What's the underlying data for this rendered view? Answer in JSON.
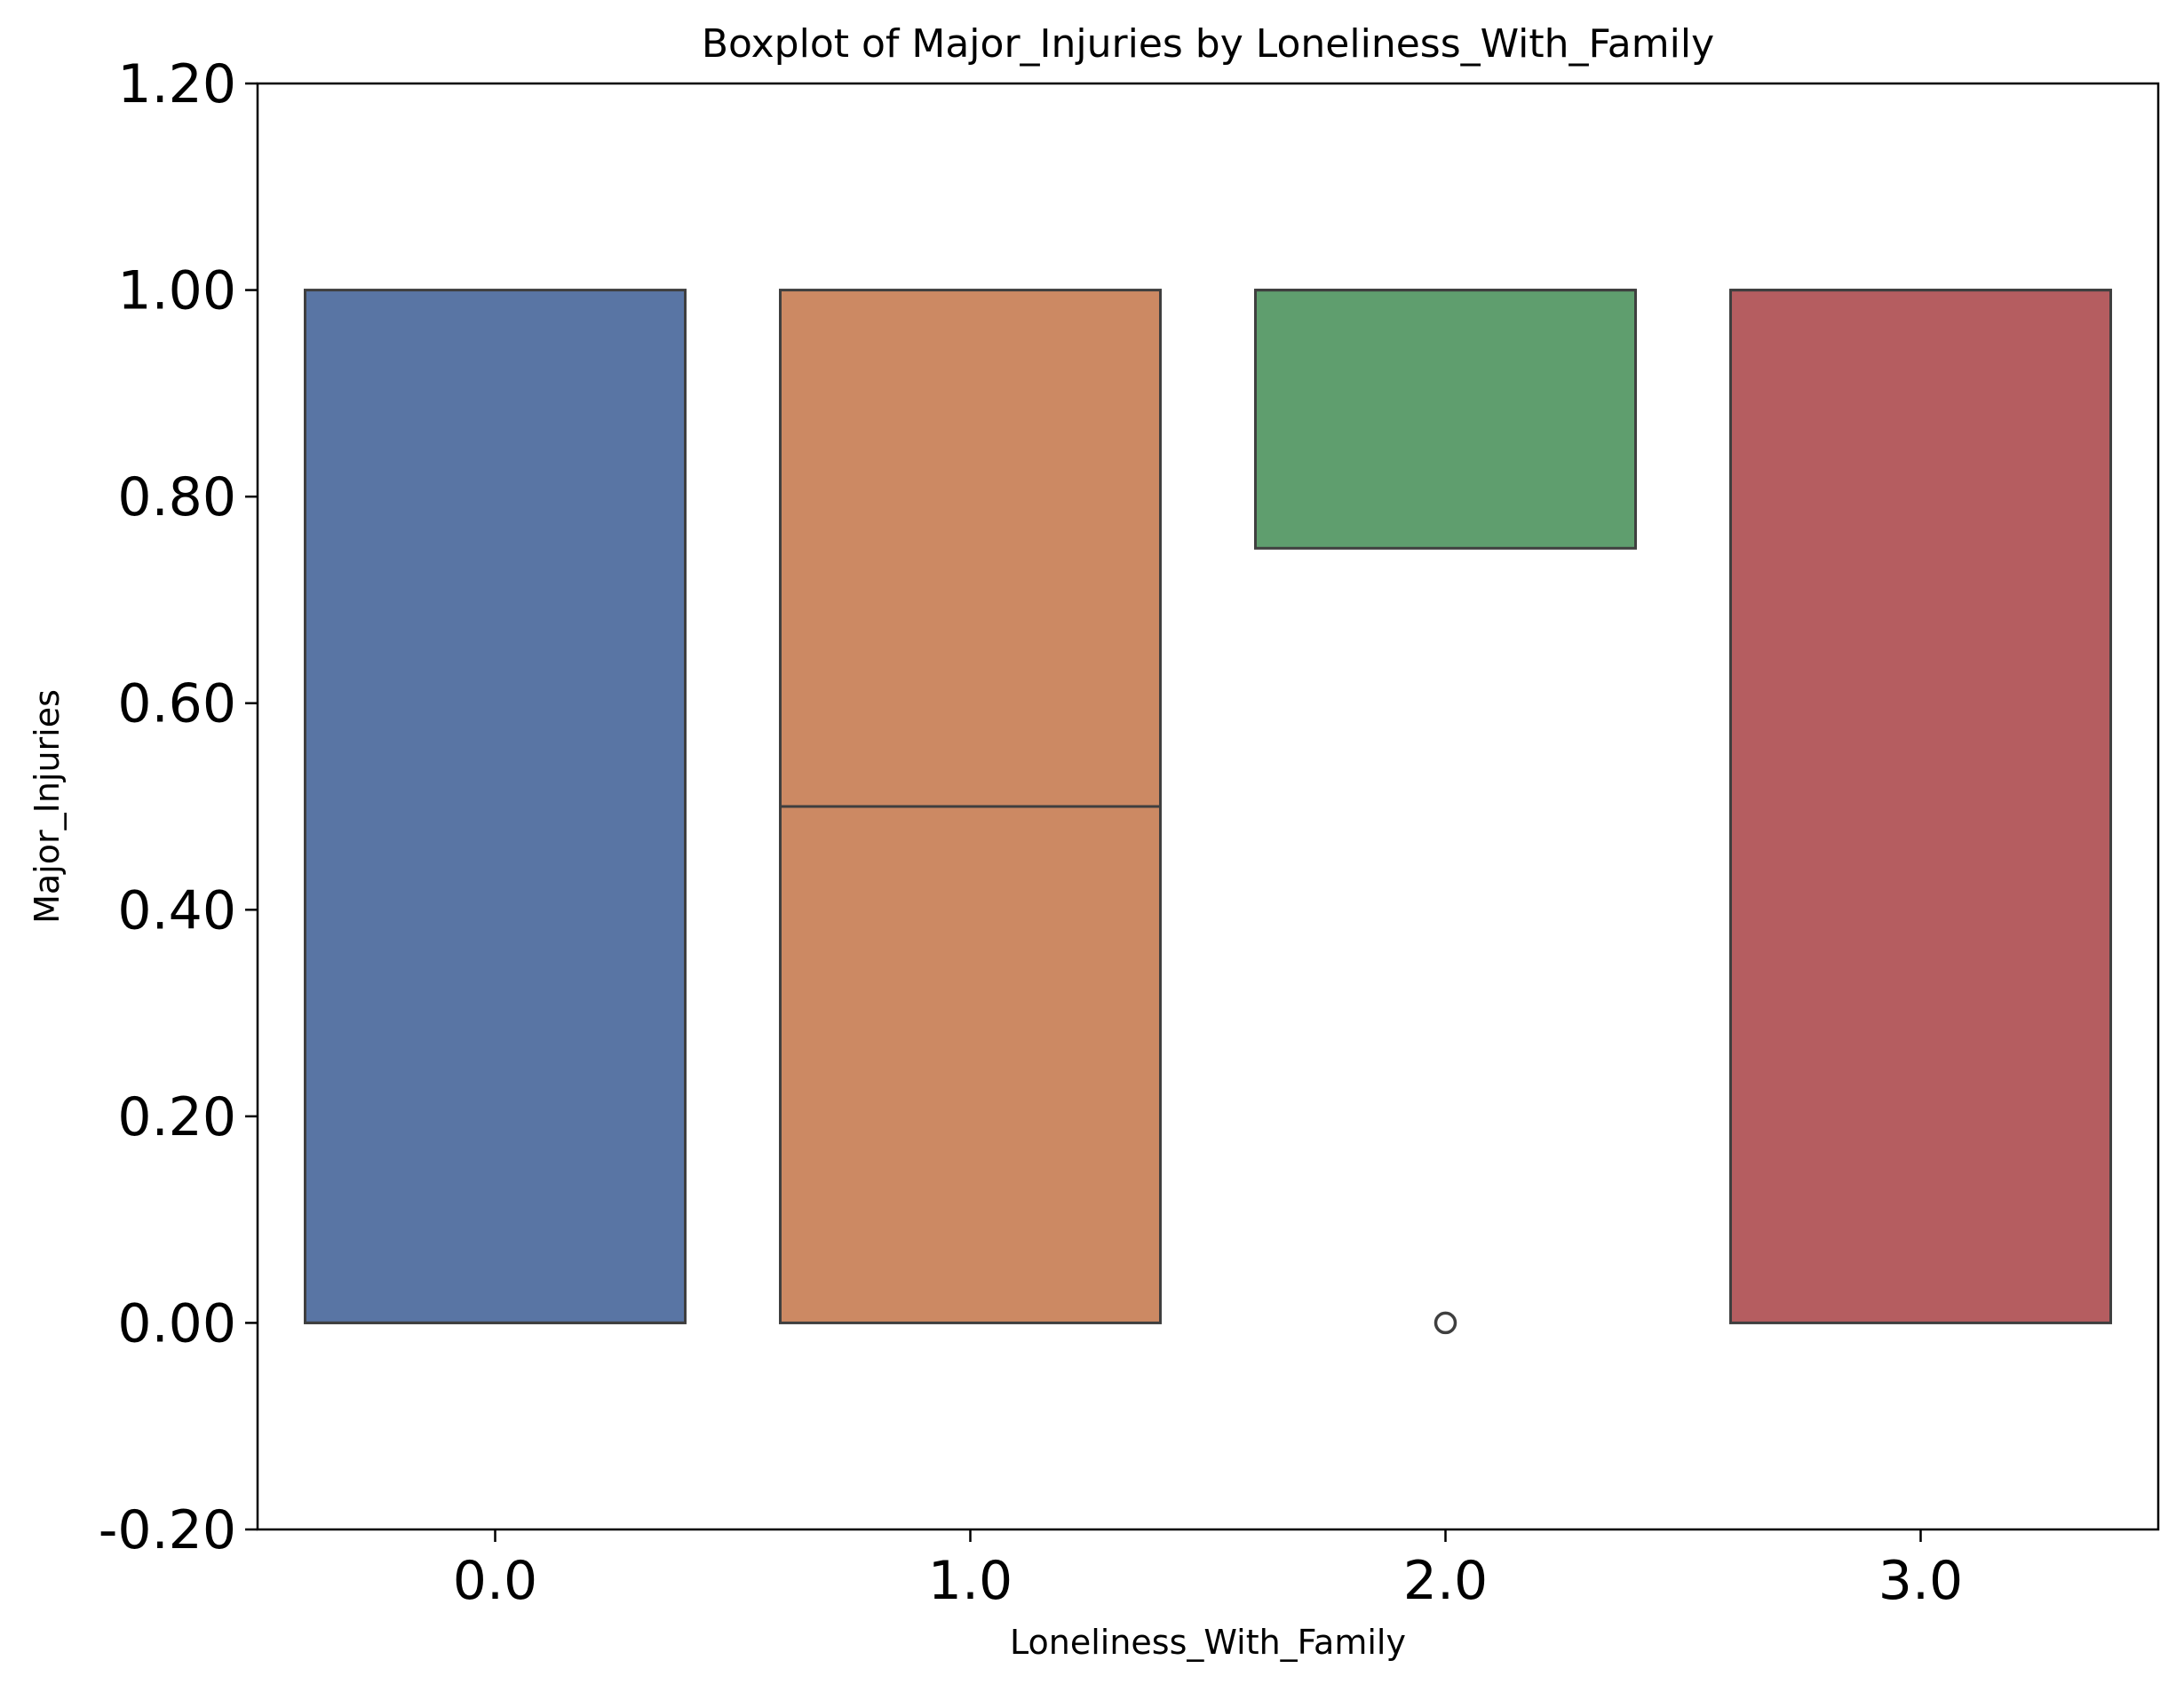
{
  "chart_data": {
    "type": "box",
    "title": "Boxplot of Major_Injuries by Loneliness_With_Family",
    "xlabel": "Loneliness_With_Family",
    "ylabel": "Major_Injuries",
    "categories": [
      "0.0",
      "1.0",
      "2.0",
      "3.0"
    ],
    "y_ticks": [
      "-0.20",
      "0.00",
      "0.20",
      "0.40",
      "0.60",
      "0.80",
      "1.00",
      "1.20"
    ],
    "ylim": [
      -0.2,
      1.2
    ],
    "grid": false,
    "legend": "none",
    "boxes": [
      {
        "category": "0.0",
        "q1": 0.0,
        "median": 0.0,
        "q3": 1.0,
        "whisker_low": 0.0,
        "whisker_high": 1.0,
        "outliers": [],
        "color": "#5975a4"
      },
      {
        "category": "1.0",
        "q1": 0.0,
        "median": 0.5,
        "q3": 1.0,
        "whisker_low": 0.0,
        "whisker_high": 1.0,
        "outliers": [],
        "color": "#cc8963"
      },
      {
        "category": "2.0",
        "q1": 0.75,
        "median": 1.0,
        "q3": 1.0,
        "whisker_low": 0.75,
        "whisker_high": 1.0,
        "outliers": [
          0.0
        ],
        "color": "#5f9e6e"
      },
      {
        "category": "3.0",
        "q1": 0.0,
        "median": 1.0,
        "q3": 1.0,
        "whisker_low": 0.0,
        "whisker_high": 1.0,
        "outliers": [],
        "color": "#b55d60"
      }
    ],
    "line_color": "#3f3f3f"
  }
}
